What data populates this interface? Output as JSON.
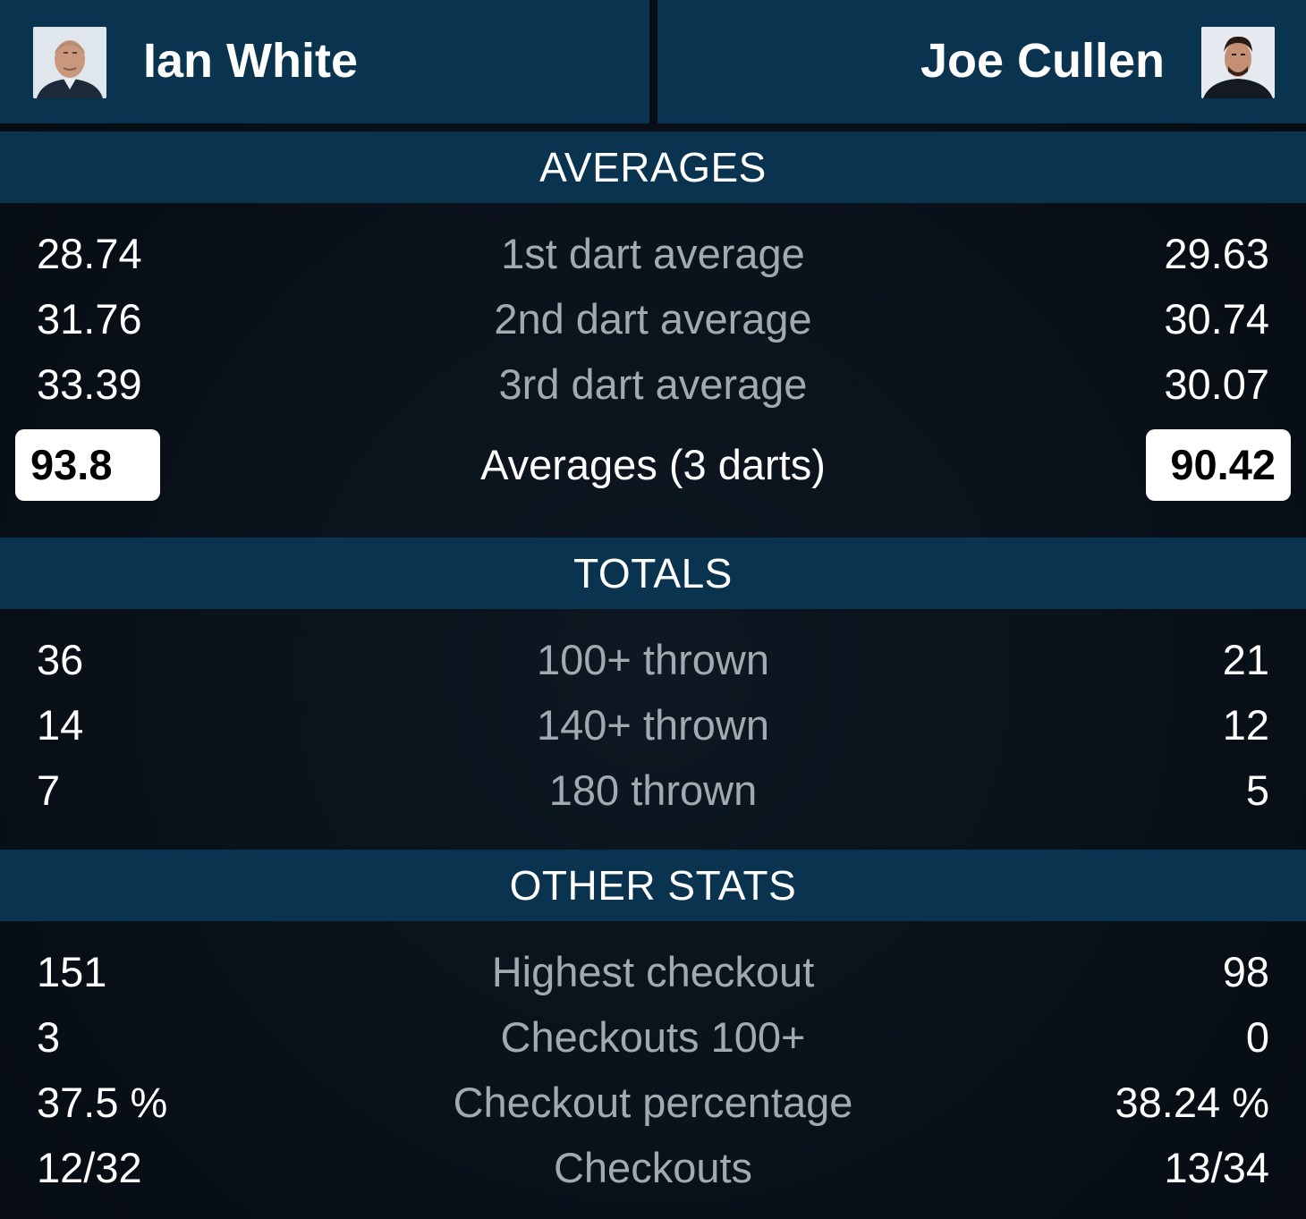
{
  "players": {
    "left": {
      "name": "Ian White",
      "avatar_icon": "player-photo-icon"
    },
    "right": {
      "name": "Joe Cullen",
      "avatar_icon": "player-photo-icon"
    }
  },
  "sections": {
    "averages": {
      "title": "AVERAGES",
      "rows": [
        {
          "label": "1st dart average",
          "left": "28.74",
          "right": "29.63"
        },
        {
          "label": "2nd dart average",
          "left": "31.76",
          "right": "30.74"
        },
        {
          "label": "3rd dart average",
          "left": "33.39",
          "right": "30.07"
        }
      ],
      "total": {
        "label": "Averages (3 darts)",
        "left": "93.8",
        "right": "90.42"
      }
    },
    "totals": {
      "title": "TOTALS",
      "rows": [
        {
          "label": "100+ thrown",
          "left": "36",
          "right": "21"
        },
        {
          "label": "140+ thrown",
          "left": "14",
          "right": "12"
        },
        {
          "label": "180 thrown",
          "left": "7",
          "right": "5"
        }
      ]
    },
    "other": {
      "title": "OTHER STATS",
      "rows": [
        {
          "label": "Highest checkout",
          "left": "151",
          "right": "98"
        },
        {
          "label": "Checkouts 100+",
          "left": "3",
          "right": "0"
        },
        {
          "label": "Checkout percentage",
          "left": "37.5 %",
          "right": "38.24 %"
        },
        {
          "label": "Checkouts",
          "left": "12/32",
          "right": "13/34"
        }
      ]
    }
  },
  "colors": {
    "panel": "#0a3350",
    "background": "#070d14",
    "label": "#a3a9b0",
    "value": "#ffffff"
  }
}
